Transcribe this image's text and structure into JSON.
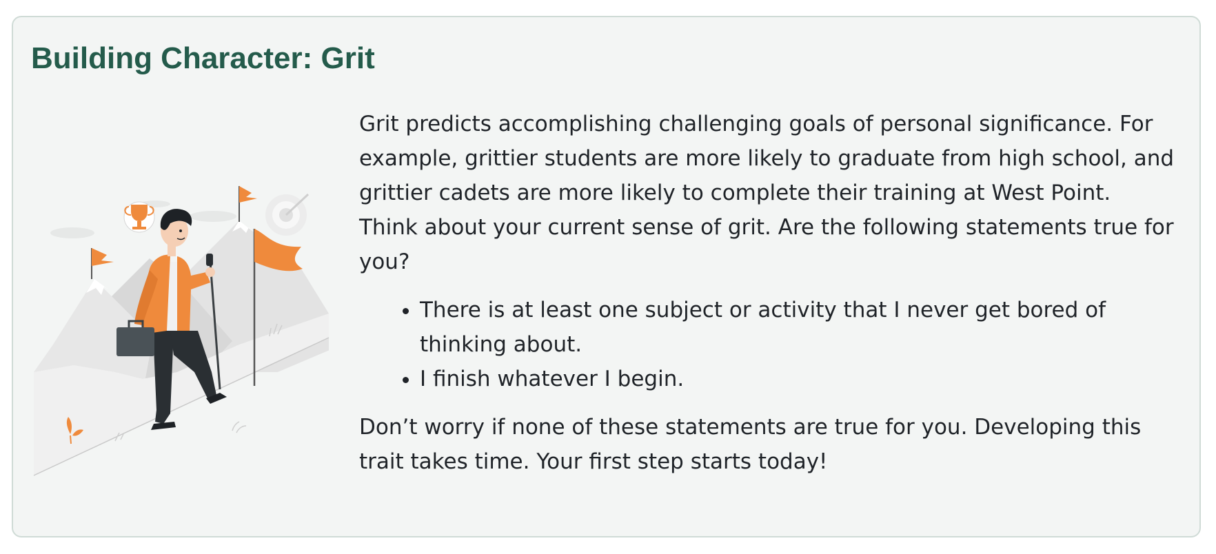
{
  "card": {
    "title": "Building Character: Grit",
    "intro_paragraph": "Grit predicts accomplishing challenging goals of personal significance. For example, grittier students are more likely to graduate from high school, and grittier cadets are more likely to complete their training at West Point.",
    "prompt_paragraph": "Think about your current sense of grit. Are the following statements true for you?",
    "statements": [
      "There is at least one subject or activity that I never get bored of thinking about.",
      "I finish whatever I begin."
    ],
    "closing_paragraph": "Don’t worry if none of these statements are true for you. Developing this trait takes time. Your first step starts today!"
  },
  "illustration": {
    "icon": "hiker-climbing-mountain-illustration",
    "accent_color": "#ef8a3c"
  },
  "colors": {
    "title": "#245b4b",
    "card_background": "#f3f5f4",
    "card_border": "#cfdbd6"
  }
}
